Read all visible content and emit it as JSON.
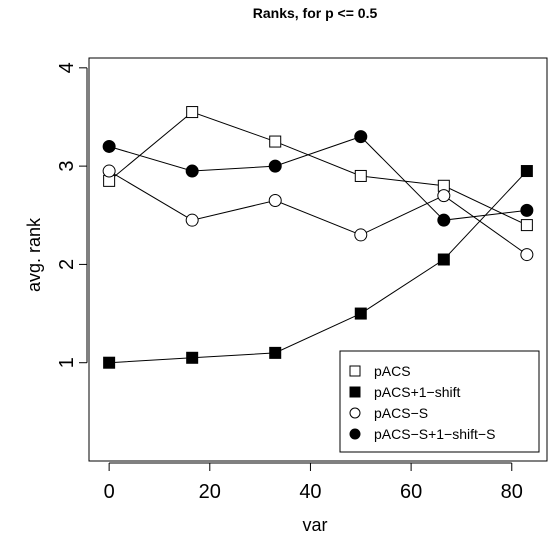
{
  "chart_data": {
    "type": "line",
    "title": "Ranks, for p <= 0.5",
    "xlabel": "var",
    "ylabel": "avg. rank",
    "x": [
      0,
      16.5,
      33,
      50,
      66.5,
      83
    ],
    "xlim": [
      -4,
      87
    ],
    "ylim": [
      0,
      4.1
    ],
    "xticks": [
      0,
      20,
      40,
      60,
      80
    ],
    "yticks": [
      1,
      2,
      3,
      4
    ],
    "grid": false,
    "legend_position": "bottom-right",
    "series": [
      {
        "name": "pACS",
        "marker": "open-square",
        "values": [
          2.85,
          3.55,
          3.25,
          2.9,
          2.8,
          2.4
        ]
      },
      {
        "name": "pACS+1−shift",
        "marker": "filled-square",
        "values": [
          1.0,
          1.05,
          1.1,
          1.5,
          2.05,
          2.95
        ]
      },
      {
        "name": "pACS−S",
        "marker": "open-circle",
        "values": [
          2.95,
          2.45,
          2.65,
          2.3,
          2.7,
          2.1
        ]
      },
      {
        "name": "pACS−S+1−shift−S",
        "marker": "filled-circle",
        "values": [
          3.2,
          2.95,
          3.0,
          3.3,
          2.45,
          2.55
        ]
      }
    ]
  }
}
